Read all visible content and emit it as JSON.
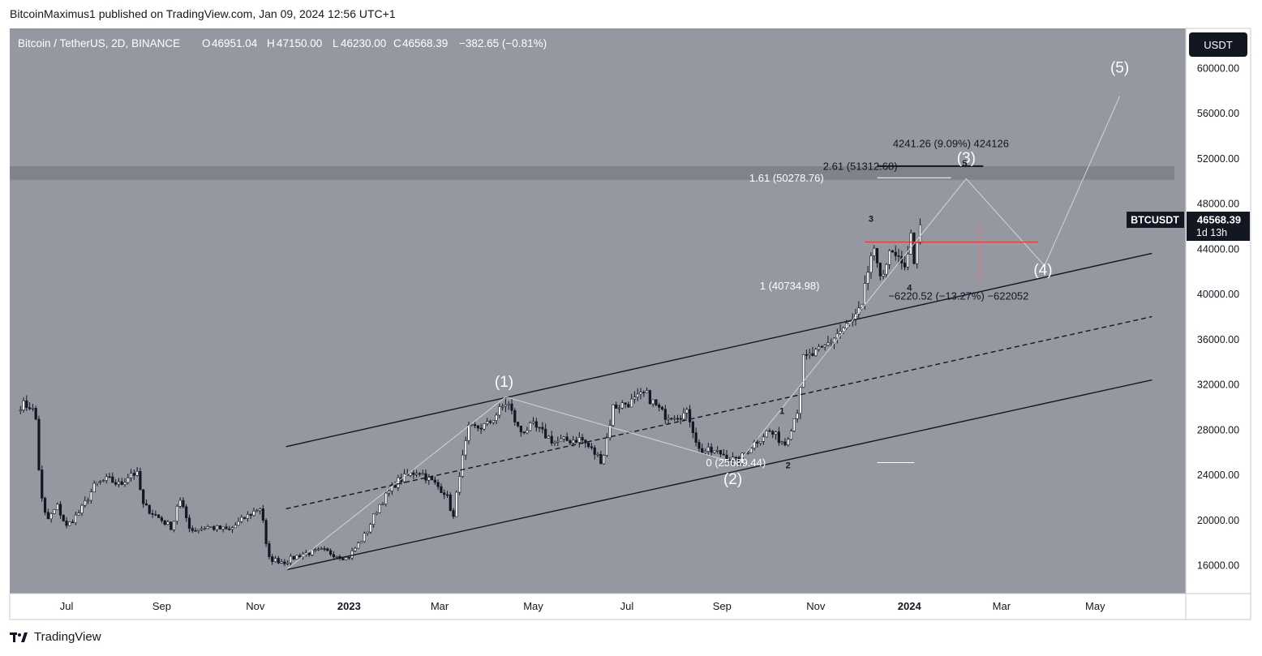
{
  "header": {
    "published": "BitcoinMaximus1 published on TradingView.com, Jan 09, 2024 12:56 UTC+1"
  },
  "footer": {
    "brand": "TradingView",
    "logo_icon": "tradingview-logo-icon"
  },
  "legend": {
    "symbol": "Bitcoin / TetherUS, 2D, BINANCE",
    "o_label": "O",
    "o_value": "46951.04",
    "h_label": "H",
    "h_value": "47150.00",
    "l_label": "L",
    "l_value": "46230.00",
    "c_label": "C",
    "c_value": "46568.39",
    "change": "−382.65 (−0.81%)"
  },
  "price_axis": {
    "currency": "USDT",
    "ticks": [
      "60000.00",
      "56000.00",
      "52000.00",
      "48000.00",
      "44000.00",
      "40000.00",
      "36000.00",
      "32000.00",
      "28000.00",
      "24000.00",
      "20000.00",
      "16000.00"
    ],
    "symbol_tag": "BTCUSDT",
    "last_price": "46568.39",
    "countdown": "1d 13h"
  },
  "time_axis": {
    "ticks": [
      "Jul",
      "Sep",
      "Nov",
      "2023",
      "Mar",
      "May",
      "Jul",
      "Sep",
      "Nov",
      "2024",
      "Mar",
      "May"
    ],
    "bold": [
      "2023",
      "2024"
    ]
  },
  "chart_data": {
    "type": "candlestick",
    "symbol": "BTCUSDT",
    "interval": "2D",
    "y_range": [
      13500,
      63500
    ],
    "x_range": [
      "2022-05-25",
      "2024-06-29"
    ],
    "close_path": [
      [
        "2022-06-01",
        30200
      ],
      [
        "2022-06-08",
        30100
      ],
      [
        "2022-06-11",
        28900
      ],
      [
        "2022-06-14",
        22400
      ],
      [
        "2022-06-18",
        19900
      ],
      [
        "2022-06-25",
        21200
      ],
      [
        "2022-07-01",
        19400
      ],
      [
        "2022-07-10",
        20800
      ],
      [
        "2022-07-20",
        23200
      ],
      [
        "2022-07-28",
        23600
      ],
      [
        "2022-08-05",
        23100
      ],
      [
        "2022-08-12",
        24200
      ],
      [
        "2022-08-16",
        24000
      ],
      [
        "2022-08-20",
        21300
      ],
      [
        "2022-08-30",
        20200
      ],
      [
        "2022-09-08",
        19300
      ],
      [
        "2022-09-12",
        22000
      ],
      [
        "2022-09-20",
        19100
      ],
      [
        "2022-10-01",
        19400
      ],
      [
        "2022-10-15",
        19100
      ],
      [
        "2022-10-25",
        20200
      ],
      [
        "2022-11-05",
        21200
      ],
      [
        "2022-11-09",
        16600
      ],
      [
        "2022-11-20",
        16300
      ],
      [
        "2022-12-01",
        17000
      ],
      [
        "2022-12-15",
        17300
      ],
      [
        "2022-12-31",
        16600
      ],
      [
        "2023-01-12",
        18800
      ],
      [
        "2023-01-20",
        21200
      ],
      [
        "2023-02-01",
        23400
      ],
      [
        "2023-02-15",
        24400
      ],
      [
        "2023-02-25",
        23300
      ],
      [
        "2023-03-05",
        22400
      ],
      [
        "2023-03-10",
        20200
      ],
      [
        "2023-03-14",
        24200
      ],
      [
        "2023-03-20",
        28000
      ],
      [
        "2023-04-01",
        28400
      ],
      [
        "2023-04-14",
        30500
      ],
      [
        "2023-04-22",
        27800
      ],
      [
        "2023-05-01",
        28300
      ],
      [
        "2023-05-15",
        26900
      ],
      [
        "2023-06-01",
        27200
      ],
      [
        "2023-06-15",
        25200
      ],
      [
        "2023-06-22",
        30000
      ],
      [
        "2023-07-05",
        30500
      ],
      [
        "2023-07-13",
        31200
      ],
      [
        "2023-07-25",
        29300
      ],
      [
        "2023-08-10",
        29400
      ],
      [
        "2023-08-17",
        26200
      ],
      [
        "2023-09-01",
        25900
      ],
      [
        "2023-09-11",
        25100
      ],
      [
        "2023-09-20",
        26600
      ],
      [
        "2023-10-01",
        27900
      ],
      [
        "2023-10-12",
        26800
      ],
      [
        "2023-10-20",
        29800
      ],
      [
        "2023-10-24",
        34200
      ],
      [
        "2023-11-05",
        35000
      ],
      [
        "2023-11-15",
        36500
      ],
      [
        "2023-11-25",
        37600
      ],
      [
        "2023-12-01",
        38700
      ],
      [
        "2023-12-05",
        42000
      ],
      [
        "2023-12-08",
        44100
      ],
      [
        "2023-12-12",
        41500
      ],
      [
        "2023-12-20",
        43600
      ],
      [
        "2023-12-28",
        42200
      ],
      [
        "2024-01-02",
        45000
      ],
      [
        "2024-01-03",
        42800
      ],
      [
        "2024-01-06",
        44000
      ],
      [
        "2024-01-09",
        46568
      ]
    ],
    "wave_labels": [
      {
        "text": "(1)",
        "x": "2023-04-12",
        "y": 31800
      },
      {
        "text": "(2)",
        "x": "2023-09-08",
        "y": 23200
      },
      {
        "text": "(3)",
        "x": "2024-02-07",
        "y": 51600
      },
      {
        "text": "(4)",
        "x": "2024-03-28",
        "y": 41700
      },
      {
        "text": "(5)",
        "x": "2024-05-17",
        "y": 59600
      }
    ],
    "subwave_labels": [
      {
        "text": "1",
        "x": "2023-10-10",
        "y": 29400
      },
      {
        "text": "2",
        "x": "2023-10-14",
        "y": 24600
      },
      {
        "text": "3",
        "x": "2023-12-07",
        "y": 46400
      },
      {
        "text": "4",
        "x": "2024-01-01",
        "y": 40300
      },
      {
        "text": "5",
        "x": "2024-02-06",
        "y": 51300
      }
    ],
    "fib_levels": [
      {
        "label": "2.61 (51312.68)",
        "value": 51312.68
      },
      {
        "label": "1.61 (50278.76)",
        "value": 50278.76
      },
      {
        "label": "1 (40734.98)",
        "value": 40734.98
      },
      {
        "label": "0 (25089.44)",
        "value": 25089.44
      }
    ],
    "measure_labels": [
      {
        "text": "4241.26 (9.09%) 424126",
        "x": "2024-01-28",
        "y": 53000
      },
      {
        "text": "−6220.52 (−13.27%) −622052",
        "x": "2024-02-02",
        "y": 39500
      }
    ],
    "resistance_zone": [
      50100,
      51300
    ],
    "horizontal_line": {
      "value": 44600,
      "from": "2023-12-03",
      "to": "2024-03-25"
    },
    "channel": {
      "upper": [
        [
          "2022-11-21",
          26500
        ],
        [
          "2024-06-07",
          43600
        ]
      ],
      "middle": [
        [
          "2022-11-21",
          21000
        ],
        [
          "2024-06-07",
          38000
        ]
      ],
      "lower": [
        [
          "2022-11-21",
          15600
        ],
        [
          "2024-06-07",
          32400
        ]
      ]
    },
    "wave_path": [
      [
        "2022-11-21",
        15600
      ],
      [
        "2023-04-13",
        30900
      ],
      [
        "2023-09-11",
        25000
      ],
      [
        "2024-02-07",
        50200
      ],
      [
        "2024-03-29",
        42500
      ],
      [
        "2024-05-17",
        57500
      ]
    ]
  }
}
